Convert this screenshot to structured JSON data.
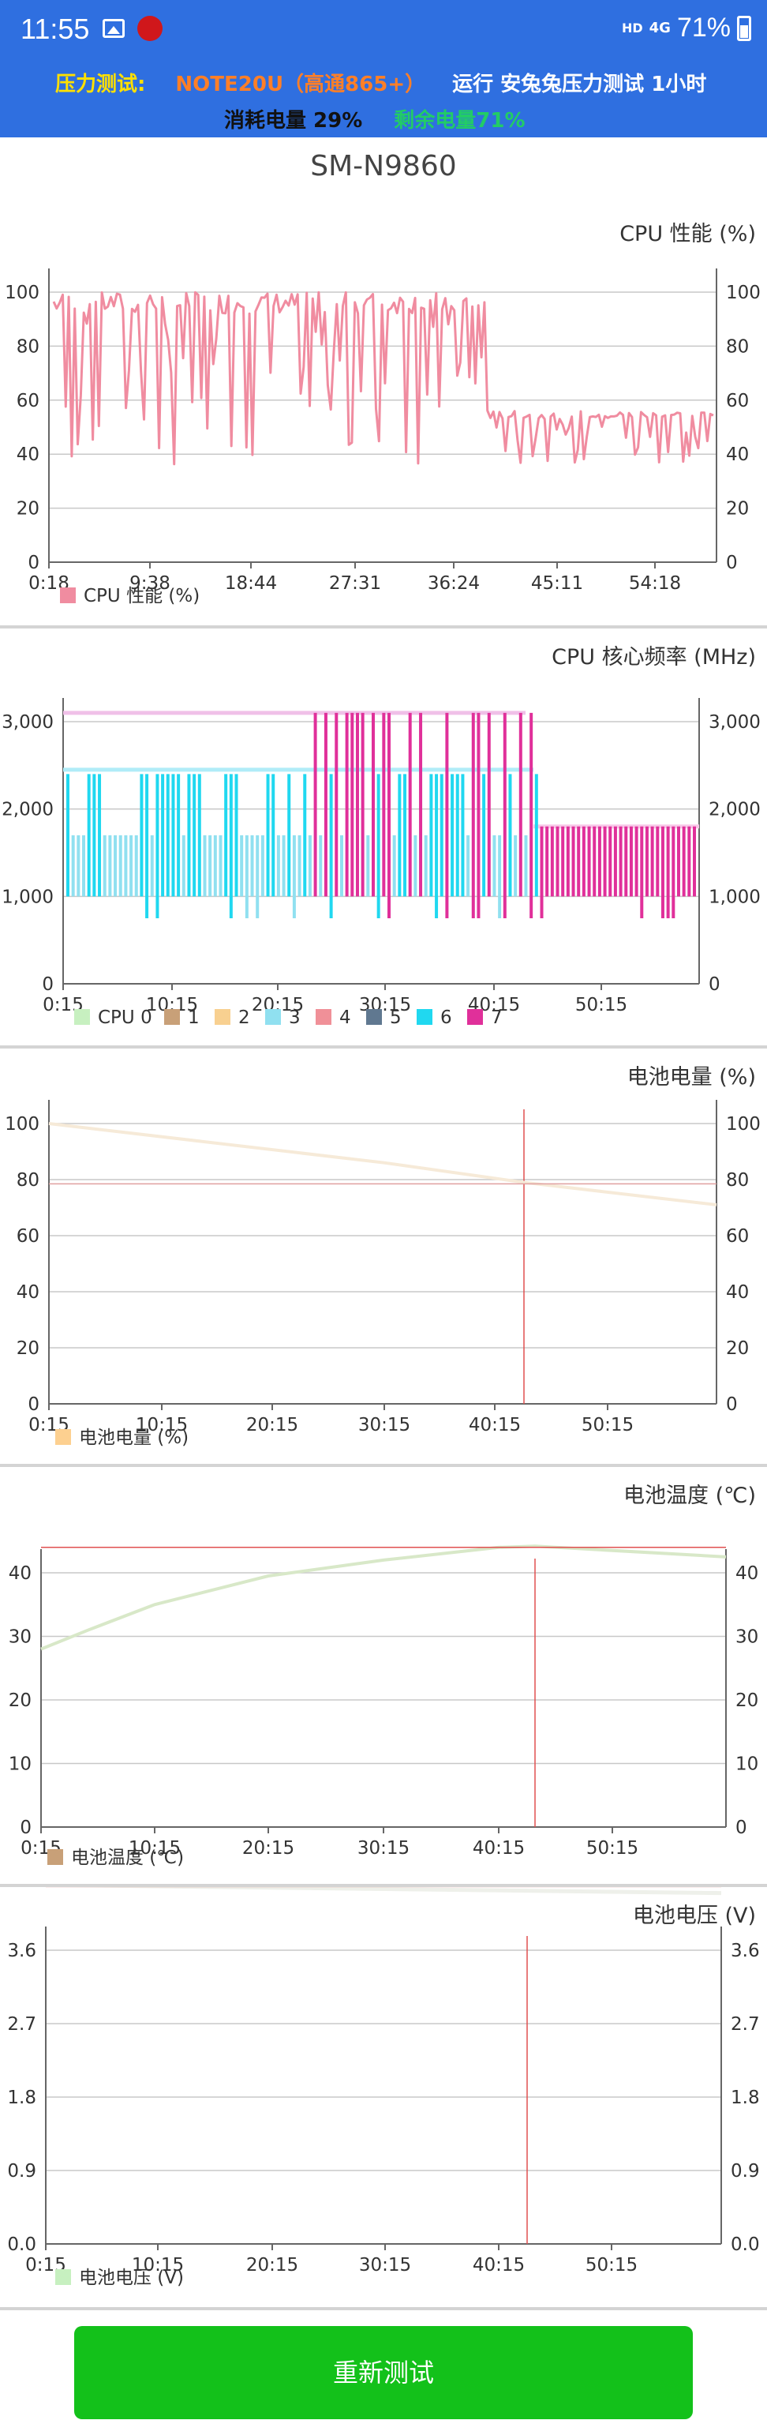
{
  "status": {
    "time": "11:55",
    "network": "HD",
    "signal": "4G",
    "battery": "71%"
  },
  "header": {
    "test_label": "压力测试:",
    "device_model": "NOTE20U（高通865+）",
    "run_text": "运行 安兔兔压力测试 1小时",
    "consumed": "消耗电量 29%",
    "remaining": "剩余电量71%"
  },
  "device_name": "SM-N9860",
  "charts": [
    {
      "title": "CPU 性能 (%)",
      "x_ticks": [
        "0:18",
        "9:38",
        "18:44",
        "27:31",
        "36:24",
        "45:11",
        "54:18"
      ],
      "y_ticks": [
        "0",
        "20",
        "40",
        "60",
        "80",
        "100"
      ],
      "legend": [
        {
          "label": "CPU 性能 (%)",
          "color": "#f08ca0"
        }
      ]
    },
    {
      "title": "CPU 核心频率 (MHz)",
      "x_ticks": [
        "0:15",
        "10:15",
        "20:15",
        "30:15",
        "40:15",
        "50:15"
      ],
      "y_ticks": [
        "0",
        "1,000",
        "2,000",
        "3,000"
      ],
      "legend": [
        {
          "label": "CPU 0",
          "color": "#c7f0c0"
        },
        {
          "label": "1",
          "color": "#c8a078"
        },
        {
          "label": "2",
          "color": "#f8d090"
        },
        {
          "label": "3",
          "color": "#90e0f0"
        },
        {
          "label": "4",
          "color": "#f09098"
        },
        {
          "label": "5",
          "color": "#607890"
        },
        {
          "label": "6",
          "color": "#20d8f0"
        },
        {
          "label": "7",
          "color": "#e0309a"
        }
      ]
    },
    {
      "title": "电池电量 (%)",
      "x_ticks": [
        "0:15",
        "10:15",
        "20:15",
        "30:15",
        "40:15",
        "50:15"
      ],
      "y_ticks": [
        "0",
        "20",
        "40",
        "60",
        "80",
        "100"
      ],
      "legend": [
        {
          "label": "电池电量 (%)",
          "color": "#fdd090"
        }
      ]
    },
    {
      "title": "电池温度 (℃)",
      "x_ticks": [
        "0:15",
        "10:15",
        "20:15",
        "30:15",
        "40:15",
        "50:15"
      ],
      "y_ticks": [
        "0",
        "10",
        "20",
        "30",
        "40"
      ],
      "legend": [
        {
          "label": "电池温度 (℃)",
          "color": "#c8a078"
        }
      ]
    },
    {
      "title": "电池电压 (V)",
      "x_ticks": [
        "0:15",
        "10:15",
        "20:15",
        "30:15",
        "40:15",
        "50:15"
      ],
      "y_ticks": [
        "0.0",
        "0.9",
        "1.8",
        "2.7",
        "3.6"
      ],
      "legend": [
        {
          "label": "电池电压 (V)",
          "color": "#c7f0c0"
        }
      ]
    }
  ],
  "retest_button": "重新测试"
}
